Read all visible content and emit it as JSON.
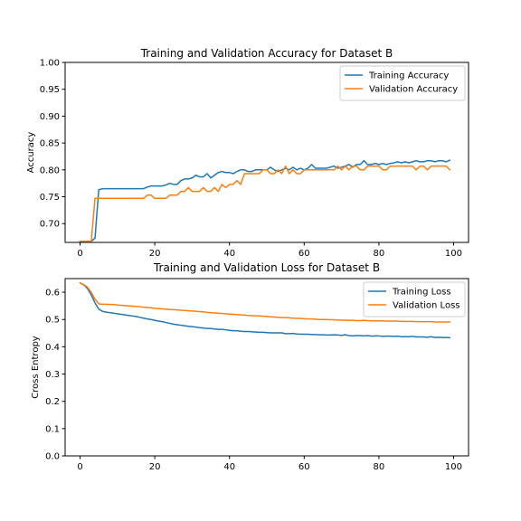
{
  "chart_data": [
    {
      "type": "line",
      "title": "Training and Validation Accuracy for Dataset B",
      "xlabel": "",
      "ylabel": "Accuracy",
      "xlim": [
        -4,
        104
      ],
      "ylim": [
        0.665,
        1.0
      ],
      "xticks": [
        0,
        20,
        40,
        60,
        80,
        100
      ],
      "yticks": [
        0.7,
        0.75,
        0.8,
        0.85,
        0.9,
        0.95,
        1.0
      ],
      "tick_decimals": 2,
      "legend_position": "upper-right",
      "grid": false,
      "series": [
        {
          "name": "Training Accuracy",
          "color": "#1f77b4",
          "x": [
            0,
            1,
            2,
            3,
            4,
            5,
            6,
            7,
            8,
            9,
            10,
            11,
            12,
            13,
            14,
            15,
            16,
            17,
            18,
            19,
            20,
            21,
            22,
            23,
            24,
            25,
            26,
            27,
            28,
            29,
            30,
            31,
            32,
            33,
            34,
            35,
            36,
            37,
            38,
            39,
            40,
            41,
            42,
            43,
            44,
            45,
            46,
            47,
            48,
            49,
            50,
            51,
            52,
            53,
            54,
            55,
            56,
            57,
            58,
            59,
            60,
            61,
            62,
            63,
            64,
            65,
            66,
            67,
            68,
            69,
            70,
            71,
            72,
            73,
            74,
            75,
            76,
            77,
            78,
            79,
            80,
            81,
            82,
            83,
            84,
            85,
            86,
            87,
            88,
            89,
            90,
            91,
            92,
            93,
            94,
            95,
            96,
            97,
            98,
            99
          ],
          "values": [
            0.667,
            0.667,
            0.667,
            0.667,
            0.673,
            0.763,
            0.765,
            0.765,
            0.765,
            0.765,
            0.765,
            0.765,
            0.765,
            0.765,
            0.765,
            0.765,
            0.765,
            0.765,
            0.768,
            0.77,
            0.77,
            0.77,
            0.77,
            0.772,
            0.775,
            0.773,
            0.773,
            0.78,
            0.783,
            0.783,
            0.785,
            0.79,
            0.787,
            0.787,
            0.793,
            0.785,
            0.79,
            0.795,
            0.797,
            0.795,
            0.795,
            0.793,
            0.797,
            0.8,
            0.8,
            0.797,
            0.797,
            0.8,
            0.8,
            0.8,
            0.8,
            0.805,
            0.8,
            0.797,
            0.8,
            0.803,
            0.8,
            0.805,
            0.8,
            0.803,
            0.8,
            0.803,
            0.81,
            0.803,
            0.803,
            0.803,
            0.803,
            0.805,
            0.807,
            0.803,
            0.805,
            0.807,
            0.81,
            0.805,
            0.81,
            0.81,
            0.817,
            0.81,
            0.81,
            0.812,
            0.81,
            0.812,
            0.81,
            0.812,
            0.813,
            0.815,
            0.813,
            0.815,
            0.813,
            0.815,
            0.817,
            0.815,
            0.815,
            0.817,
            0.817,
            0.815,
            0.817,
            0.817,
            0.815,
            0.818
          ]
        },
        {
          "name": "Validation Accuracy",
          "color": "#ff7f0e",
          "x": [
            0,
            1,
            2,
            3,
            4,
            5,
            6,
            7,
            8,
            9,
            10,
            11,
            12,
            13,
            14,
            15,
            16,
            17,
            18,
            19,
            20,
            21,
            22,
            23,
            24,
            25,
            26,
            27,
            28,
            29,
            30,
            31,
            32,
            33,
            34,
            35,
            36,
            37,
            38,
            39,
            40,
            41,
            42,
            43,
            44,
            45,
            46,
            47,
            48,
            49,
            50,
            51,
            52,
            53,
            54,
            55,
            56,
            57,
            58,
            59,
            60,
            61,
            62,
            63,
            64,
            65,
            66,
            67,
            68,
            69,
            70,
            71,
            72,
            73,
            74,
            75,
            76,
            77,
            78,
            79,
            80,
            81,
            82,
            83,
            84,
            85,
            86,
            87,
            88,
            89,
            90,
            91,
            92,
            93,
            94,
            95,
            96,
            97,
            98,
            99
          ],
          "values": [
            0.667,
            0.667,
            0.667,
            0.667,
            0.747,
            0.747,
            0.747,
            0.747,
            0.747,
            0.747,
            0.747,
            0.747,
            0.747,
            0.747,
            0.747,
            0.747,
            0.747,
            0.747,
            0.753,
            0.753,
            0.747,
            0.747,
            0.747,
            0.747,
            0.753,
            0.753,
            0.753,
            0.76,
            0.76,
            0.767,
            0.76,
            0.76,
            0.76,
            0.767,
            0.76,
            0.76,
            0.767,
            0.76,
            0.773,
            0.767,
            0.773,
            0.773,
            0.78,
            0.773,
            0.793,
            0.793,
            0.793,
            0.793,
            0.793,
            0.8,
            0.8,
            0.793,
            0.793,
            0.8,
            0.793,
            0.807,
            0.793,
            0.8,
            0.793,
            0.793,
            0.8,
            0.8,
            0.8,
            0.8,
            0.8,
            0.8,
            0.8,
            0.8,
            0.8,
            0.807,
            0.8,
            0.807,
            0.8,
            0.807,
            0.807,
            0.8,
            0.8,
            0.807,
            0.807,
            0.807,
            0.807,
            0.8,
            0.8,
            0.807,
            0.807,
            0.807,
            0.807,
            0.807,
            0.807,
            0.807,
            0.8,
            0.807,
            0.807,
            0.8,
            0.807,
            0.807,
            0.807,
            0.807,
            0.807,
            0.8
          ]
        }
      ]
    },
    {
      "type": "line",
      "title": "Training and Validation Loss for Dataset B",
      "xlabel": "",
      "ylabel": "Cross Entropy",
      "xlim": [
        -4,
        104
      ],
      "ylim": [
        0.0,
        0.65
      ],
      "xticks": [
        0,
        20,
        40,
        60,
        80,
        100
      ],
      "yticks": [
        0.0,
        0.1,
        0.2,
        0.3,
        0.4,
        0.5,
        0.6
      ],
      "tick_decimals": 1,
      "legend_position": "upper-right",
      "grid": false,
      "series": [
        {
          "name": "Training Loss",
          "color": "#1f77b4",
          "x": [
            0,
            1,
            2,
            3,
            4,
            5,
            6,
            7,
            8,
            9,
            10,
            11,
            12,
            13,
            14,
            15,
            16,
            17,
            18,
            19,
            20,
            21,
            22,
            23,
            24,
            25,
            26,
            27,
            28,
            29,
            30,
            31,
            32,
            33,
            34,
            35,
            36,
            37,
            38,
            39,
            40,
            41,
            42,
            43,
            44,
            45,
            46,
            47,
            48,
            49,
            50,
            51,
            52,
            53,
            54,
            55,
            56,
            57,
            58,
            59,
            60,
            61,
            62,
            63,
            64,
            65,
            66,
            67,
            68,
            69,
            70,
            71,
            72,
            73,
            74,
            75,
            76,
            77,
            78,
            79,
            80,
            81,
            82,
            83,
            84,
            85,
            86,
            87,
            88,
            89,
            90,
            91,
            92,
            93,
            94,
            95,
            96,
            97,
            98,
            99
          ],
          "values": [
            0.634,
            0.627,
            0.613,
            0.59,
            0.561,
            0.538,
            0.53,
            0.527,
            0.525,
            0.523,
            0.521,
            0.519,
            0.517,
            0.515,
            0.513,
            0.511,
            0.508,
            0.505,
            0.502,
            0.5,
            0.497,
            0.494,
            0.492,
            0.489,
            0.486,
            0.483,
            0.481,
            0.479,
            0.477,
            0.475,
            0.474,
            0.472,
            0.47,
            0.469,
            0.467,
            0.467,
            0.465,
            0.464,
            0.464,
            0.462,
            0.46,
            0.459,
            0.459,
            0.457,
            0.456,
            0.456,
            0.455,
            0.454,
            0.453,
            0.453,
            0.452,
            0.451,
            0.451,
            0.451,
            0.451,
            0.448,
            0.448,
            0.449,
            0.447,
            0.446,
            0.446,
            0.446,
            0.445,
            0.445,
            0.444,
            0.444,
            0.443,
            0.443,
            0.444,
            0.443,
            0.442,
            0.444,
            0.441,
            0.44,
            0.441,
            0.441,
            0.44,
            0.441,
            0.439,
            0.44,
            0.44,
            0.438,
            0.439,
            0.439,
            0.438,
            0.439,
            0.437,
            0.437,
            0.437,
            0.438,
            0.436,
            0.436,
            0.436,
            0.435,
            0.437,
            0.434,
            0.435,
            0.434,
            0.434,
            0.433
          ]
        },
        {
          "name": "Validation Loss",
          "color": "#ff7f0e",
          "x": [
            0,
            1,
            2,
            3,
            4,
            5,
            6,
            7,
            8,
            9,
            10,
            11,
            12,
            13,
            14,
            15,
            16,
            17,
            18,
            19,
            20,
            21,
            22,
            23,
            24,
            25,
            26,
            27,
            28,
            29,
            30,
            31,
            32,
            33,
            34,
            35,
            36,
            37,
            38,
            39,
            40,
            41,
            42,
            43,
            44,
            45,
            46,
            47,
            48,
            49,
            50,
            51,
            52,
            53,
            54,
            55,
            56,
            57,
            58,
            59,
            60,
            61,
            62,
            63,
            64,
            65,
            66,
            67,
            68,
            69,
            70,
            71,
            72,
            73,
            74,
            75,
            76,
            77,
            78,
            79,
            80,
            81,
            82,
            83,
            84,
            85,
            86,
            87,
            88,
            89,
            90,
            91,
            92,
            93,
            94,
            95,
            96,
            97,
            98,
            99
          ],
          "values": [
            0.634,
            0.628,
            0.618,
            0.6,
            0.575,
            0.557,
            0.556,
            0.556,
            0.555,
            0.555,
            0.553,
            0.552,
            0.551,
            0.55,
            0.549,
            0.548,
            0.547,
            0.545,
            0.544,
            0.543,
            0.541,
            0.54,
            0.539,
            0.538,
            0.537,
            0.536,
            0.535,
            0.534,
            0.533,
            0.532,
            0.531,
            0.53,
            0.529,
            0.528,
            0.526,
            0.525,
            0.524,
            0.523,
            0.522,
            0.521,
            0.52,
            0.519,
            0.518,
            0.517,
            0.516,
            0.515,
            0.514,
            0.513,
            0.513,
            0.512,
            0.511,
            0.51,
            0.509,
            0.508,
            0.507,
            0.507,
            0.506,
            0.505,
            0.504,
            0.504,
            0.503,
            0.502,
            0.502,
            0.501,
            0.5,
            0.5,
            0.5,
            0.499,
            0.499,
            0.498,
            0.498,
            0.497,
            0.497,
            0.497,
            0.496,
            0.496,
            0.497,
            0.496,
            0.495,
            0.495,
            0.495,
            0.495,
            0.494,
            0.494,
            0.494,
            0.494,
            0.493,
            0.493,
            0.493,
            0.493,
            0.492,
            0.492,
            0.492,
            0.492,
            0.492,
            0.491,
            0.491,
            0.491,
            0.491,
            0.491
          ]
        }
      ]
    }
  ]
}
